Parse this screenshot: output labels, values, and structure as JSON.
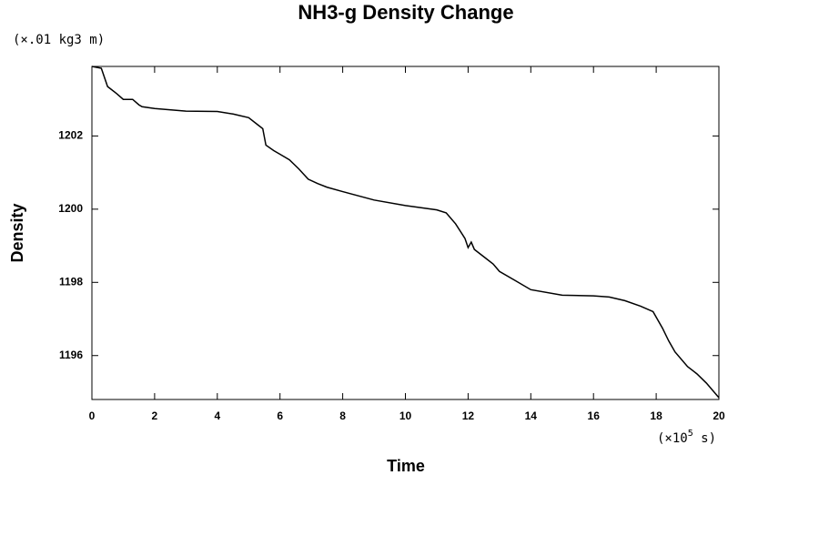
{
  "chart_data": {
    "type": "line",
    "title": "NH3-g Density Change",
    "x_label": "Time",
    "y_label": "Density",
    "y_units": "(×.01 kg3 m)",
    "x_units": {
      "prefix": "(×10",
      "exponent": "5",
      "suffix": " s)"
    },
    "x": [
      0,
      0.3,
      0.5,
      0.8,
      1.0,
      1.3,
      1.5,
      1.6,
      2.0,
      3.0,
      4.0,
      4.5,
      5.0,
      5.3,
      5.45,
      5.55,
      5.8,
      6.0,
      6.3,
      6.6,
      6.9,
      7.2,
      7.5,
      8,
      9,
      10,
      11,
      11.3,
      11.6,
      11.9,
      12.0,
      12.1,
      12.2,
      12.5,
      12.8,
      13.0,
      13.5,
      14,
      15,
      16,
      16.5,
      17,
      17.5,
      17.9,
      18.2,
      18.4,
      18.6,
      19.0,
      19.3,
      19.6,
      20.0
    ],
    "series": [
      {
        "name": "Density",
        "color": "#000000",
        "values": [
          1203.9,
          1203.85,
          1203.35,
          1203.15,
          1203.0,
          1203.0,
          1202.85,
          1202.8,
          1202.75,
          1202.68,
          1202.67,
          1202.6,
          1202.5,
          1202.3,
          1202.2,
          1201.75,
          1201.6,
          1201.5,
          1201.35,
          1201.1,
          1200.82,
          1200.7,
          1200.6,
          1200.48,
          1200.25,
          1200.1,
          1199.98,
          1199.9,
          1199.6,
          1199.2,
          1198.95,
          1199.1,
          1198.9,
          1198.7,
          1198.5,
          1198.3,
          1198.05,
          1197.8,
          1197.65,
          1197.63,
          1197.6,
          1197.5,
          1197.35,
          1197.2,
          1196.75,
          1196.4,
          1196.1,
          1195.7,
          1195.5,
          1195.25,
          1194.85
        ]
      }
    ],
    "xlim": [
      0,
      20
    ],
    "xticks": [
      0,
      2,
      4,
      6,
      8,
      10,
      12,
      14,
      16,
      18,
      20
    ],
    "ylim": [
      1194.8,
      1203.9
    ],
    "yticks": [
      1196,
      1198,
      1200,
      1202
    ]
  }
}
